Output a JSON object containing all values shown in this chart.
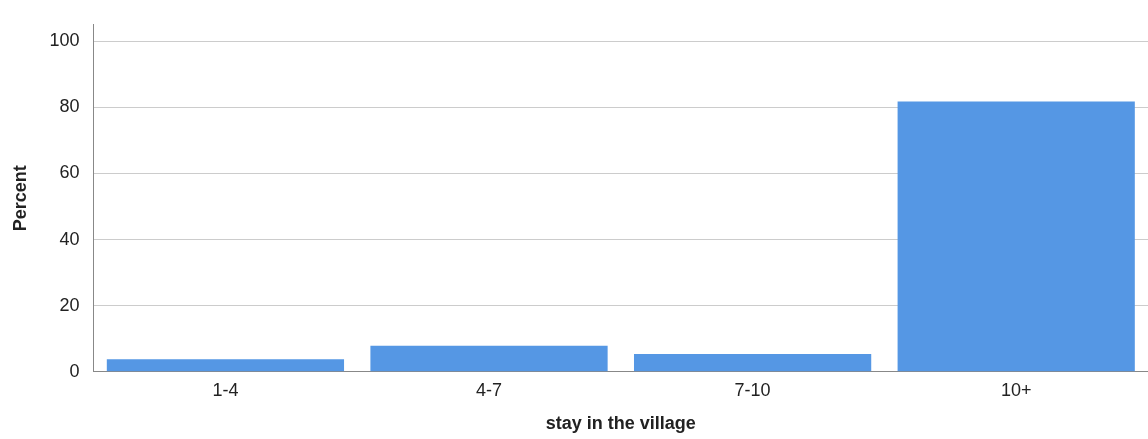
{
  "chart_data": {
    "type": "bar",
    "xlabel": "stay in the village",
    "ylabel": "Percent",
    "categories": [
      "1-4",
      "4-7",
      "7-10",
      "10+"
    ],
    "values": [
      3.8,
      7.9,
      5.4,
      81.8
    ],
    "color": "#5597e4",
    "ylim": [
      0,
      105
    ],
    "yticks": [
      0,
      20,
      40,
      60,
      80,
      100
    ],
    "grid": "y"
  }
}
